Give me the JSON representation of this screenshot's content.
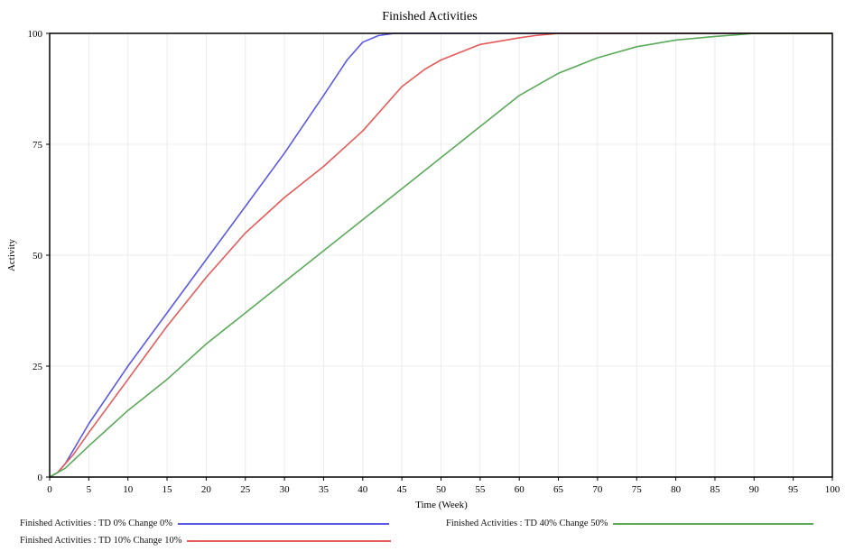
{
  "chart_data": {
    "type": "line",
    "title": "Finished Activities",
    "xlabel": "Time (Week)",
    "ylabel": "Activity",
    "xlim": [
      0,
      100
    ],
    "ylim": [
      0,
      100
    ],
    "xticks": [
      0,
      5,
      10,
      15,
      20,
      25,
      30,
      35,
      40,
      45,
      50,
      55,
      60,
      65,
      70,
      75,
      80,
      85,
      90,
      95,
      100
    ],
    "yticks": [
      0,
      25,
      50,
      75,
      100
    ],
    "grid": true,
    "legend_position": "bottom",
    "series": [
      {
        "name": "Finished Activities : TD 0% Change 0%",
        "color": "#5a5ae6",
        "x": [
          0,
          1,
          2,
          3,
          5,
          10,
          15,
          20,
          25,
          30,
          35,
          38,
          40,
          42,
          44,
          46,
          48,
          50,
          55,
          60,
          70,
          80,
          90,
          100
        ],
        "y": [
          0,
          1,
          3,
          6,
          12,
          25,
          37,
          49,
          61,
          73,
          86,
          94,
          98,
          99.5,
          100,
          100,
          100,
          100,
          100,
          100,
          100,
          100,
          100,
          100
        ]
      },
      {
        "name": "Finished Activities : TD 10% Change 10%",
        "color": "#e65a5a",
        "x": [
          0,
          1,
          2,
          3,
          5,
          10,
          15,
          20,
          25,
          30,
          35,
          40,
          45,
          48,
          50,
          55,
          60,
          62,
          65,
          68,
          70,
          80,
          90,
          100
        ],
        "y": [
          0,
          1,
          3,
          5,
          10,
          22,
          34,
          45,
          55,
          63,
          70,
          78,
          88,
          92,
          94,
          97.5,
          99,
          99.5,
          100,
          100,
          100,
          100,
          100,
          100
        ]
      },
      {
        "name": "Finished Activities : TD 40% Change 50%",
        "color": "#5aaa5a",
        "x": [
          0,
          2,
          5,
          10,
          15,
          20,
          25,
          30,
          35,
          40,
          45,
          50,
          55,
          60,
          63,
          65,
          70,
          75,
          80,
          85,
          88,
          90,
          95,
          100
        ],
        "y": [
          0,
          2,
          7,
          15,
          22,
          30,
          37,
          44,
          51,
          58,
          65,
          72,
          79,
          86,
          89,
          91,
          94.5,
          97,
          98.5,
          99.3,
          99.7,
          100,
          100,
          100
        ]
      }
    ]
  }
}
